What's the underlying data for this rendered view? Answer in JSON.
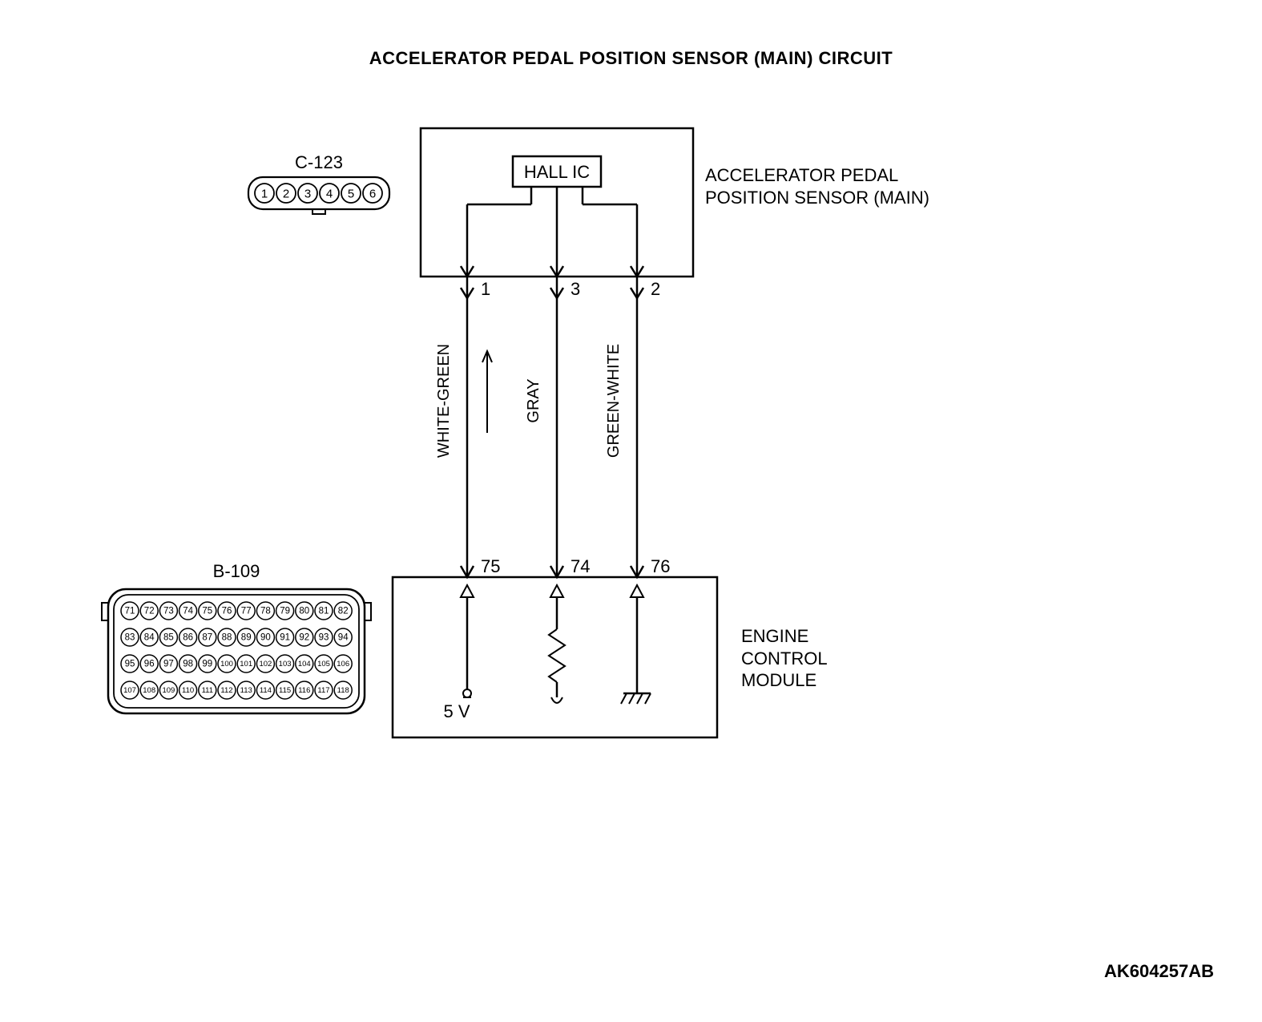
{
  "title": "ACCELERATOR PEDAL POSITION SENSOR (MAIN) CIRCUIT",
  "footer_id": "AK604257AB",
  "sensor_box": {
    "label_line1": "ACCELERATOR PEDAL",
    "label_line2": "POSITION SENSOR (MAIN)",
    "hall_ic": "HALL IC"
  },
  "ecm_box": {
    "label_line1": "ENGINE",
    "label_line2": "CONTROL",
    "label_line3": "MODULE",
    "voltage": "5 V"
  },
  "wires": [
    {
      "top_pin": "1",
      "bottom_pin": "75",
      "color": "WHITE-GREEN"
    },
    {
      "top_pin": "3",
      "bottom_pin": "74",
      "color": "GRAY"
    },
    {
      "top_pin": "2",
      "bottom_pin": "76",
      "color": "GREEN-WHITE"
    }
  ],
  "connector_c123": {
    "label": "C-123",
    "pins": [
      "1",
      "2",
      "3",
      "4",
      "5",
      "6"
    ]
  },
  "connector_b109": {
    "label": "B-109",
    "rows": [
      [
        "71",
        "72",
        "73",
        "74",
        "75",
        "76",
        "77",
        "78",
        "79",
        "80",
        "81",
        "82"
      ],
      [
        "83",
        "84",
        "85",
        "86",
        "87",
        "88",
        "89",
        "90",
        "91",
        "92",
        "93",
        "94"
      ],
      [
        "95",
        "96",
        "97",
        "98",
        "99",
        "100",
        "101",
        "102",
        "103",
        "104",
        "105",
        "106"
      ],
      [
        "107",
        "108",
        "109",
        "110",
        "111",
        "112",
        "113",
        "114",
        "115",
        "116",
        "117",
        "118"
      ]
    ]
  },
  "styling": {
    "stroke_color": "#000000",
    "stroke_width_box": 2.5,
    "stroke_width_wire": 2.5,
    "background": "#ffffff",
    "font_title": 22,
    "font_label": 22,
    "font_pin": 22,
    "font_wire_color": 20,
    "font_connector_pin": 14
  }
}
